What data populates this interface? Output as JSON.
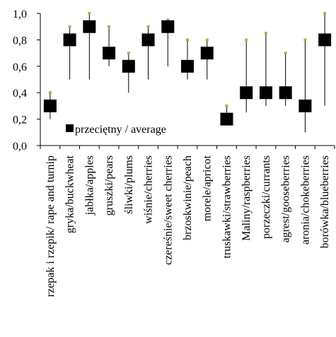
{
  "chart_data": {
    "type": "stock",
    "title": "",
    "xlabel": "",
    "ylabel": "",
    "ylim": [
      0,
      1.0
    ],
    "yticks": [
      "0,0",
      "0,2",
      "0,4",
      "0,6",
      "0,8",
      "1,0"
    ],
    "ytick_values": [
      0,
      0.2,
      0.4,
      0.6,
      0.8,
      1.0
    ],
    "legend": {
      "label": "przeciętny / average",
      "position": "inside-lower-left"
    },
    "categories": [
      "rzepak i rzepik/ rape and turnip",
      "gryka/buckwheat",
      "jabłka/apples",
      "gruszki/pears",
      "śliwki/plums",
      "wiśnie/cherries",
      "czereśnie/sweet cherries",
      "brzoskwinie/peach",
      "morele/apricot",
      "truskawki/strawberries",
      "Maliny/raspberries",
      "porzeczki/currants",
      "agrest/gooseberries",
      "aronia/chokeberries",
      "borówka/blueberries"
    ],
    "series": [
      {
        "name": "przeciętny / average",
        "values": [
          0.3,
          0.8,
          0.9,
          0.7,
          0.6,
          0.8,
          0.9,
          0.6,
          0.7,
          0.2,
          0.4,
          0.4,
          0.4,
          0.3,
          0.8
        ]
      },
      {
        "values": [
          0.4,
          0.9,
          1.0,
          0.9,
          0.7,
          0.9,
          0.95,
          0.8,
          0.8,
          0.3,
          0.8,
          0.85,
          0.7,
          0.8,
          1.0
        ]
      },
      {
        "values": [
          0.2,
          0.5,
          0.5,
          0.6,
          0.4,
          0.5,
          0.6,
          0.5,
          0.5,
          0.2,
          0.25,
          0.3,
          0.3,
          0.1,
          0.3
        ]
      }
    ],
    "colors": {
      "average_marker": "#000000",
      "max_marker": "#9bbb59",
      "range_line": "#000000",
      "axis": "#000000"
    },
    "grid": false
  }
}
